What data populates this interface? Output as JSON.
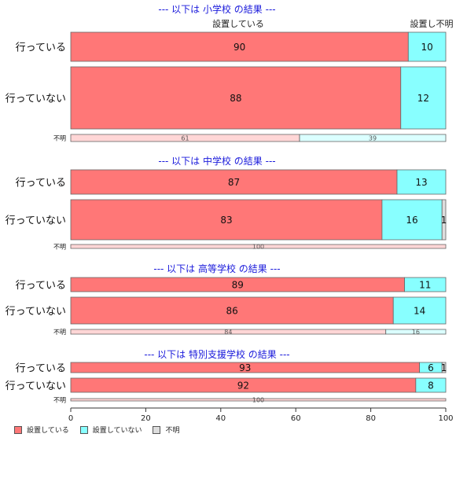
{
  "colors": {
    "set": "#ff7777",
    "notset": "#88ffff",
    "unknown": "#dddddd",
    "title": "#1a1adb"
  },
  "chart_data": {
    "type": "bar",
    "orientation": "horizontal",
    "stacked": true,
    "xlim": [
      0,
      100
    ],
    "x_ticks": [
      "0",
      "20",
      "40",
      "60",
      "80",
      "100"
    ],
    "header_labels": [
      "設置している",
      "設置し不明"
    ],
    "legend": [
      "設置している",
      "設置していない",
      "不明"
    ],
    "legend_placement": "bottom-left",
    "panels": [
      {
        "title": "--- 以下は 小学校 の結果 ---",
        "rows": [
          {
            "label": "行っている",
            "values": [
              90,
              10,
              0
            ],
            "labels": [
              "90",
              "10",
              ""
            ]
          },
          {
            "label": "行っていない",
            "values": [
              88,
              12,
              0
            ],
            "labels": [
              "88",
              "12",
              ""
            ]
          },
          {
            "label": "不明",
            "values": [
              61,
              39,
              0
            ],
            "labels": [
              "61",
              "39",
              ""
            ],
            "thin": true
          }
        ]
      },
      {
        "title": "--- 以下は 中学校 の結果 ---",
        "rows": [
          {
            "label": "行っている",
            "values": [
              87,
              13,
              0
            ],
            "labels": [
              "87",
              "13",
              ""
            ]
          },
          {
            "label": "行っていない",
            "values": [
              83,
              16,
              1
            ],
            "labels": [
              "83",
              "16",
              "1"
            ]
          },
          {
            "label": "不明",
            "values": [
              100,
              0,
              0
            ],
            "labels": [
              "100",
              "",
              ""
            ],
            "thin": true
          }
        ]
      },
      {
        "title": "--- 以下は 高等学校 の結果 ---",
        "rows": [
          {
            "label": "行っている",
            "values": [
              89,
              11,
              0
            ],
            "labels": [
              "89",
              "11",
              ""
            ]
          },
          {
            "label": "行っていない",
            "values": [
              86,
              14,
              0
            ],
            "labels": [
              "86",
              "14",
              ""
            ]
          },
          {
            "label": "不明",
            "values": [
              84,
              16,
              0
            ],
            "labels": [
              "84",
              "16",
              ""
            ],
            "thin": true
          }
        ]
      },
      {
        "title": "--- 以下は 特別支援学校 の結果 ---",
        "rows": [
          {
            "label": "行っている",
            "values": [
              93,
              6,
              1
            ],
            "labels": [
              "93",
              "6",
              "1"
            ]
          },
          {
            "label": "行っていない",
            "values": [
              92,
              8,
              0
            ],
            "labels": [
              "92",
              "8",
              ""
            ]
          },
          {
            "label": "不明",
            "values": [
              100,
              0,
              0
            ],
            "labels": [
              "100",
              "",
              ""
            ],
            "thin": true
          }
        ]
      }
    ]
  }
}
